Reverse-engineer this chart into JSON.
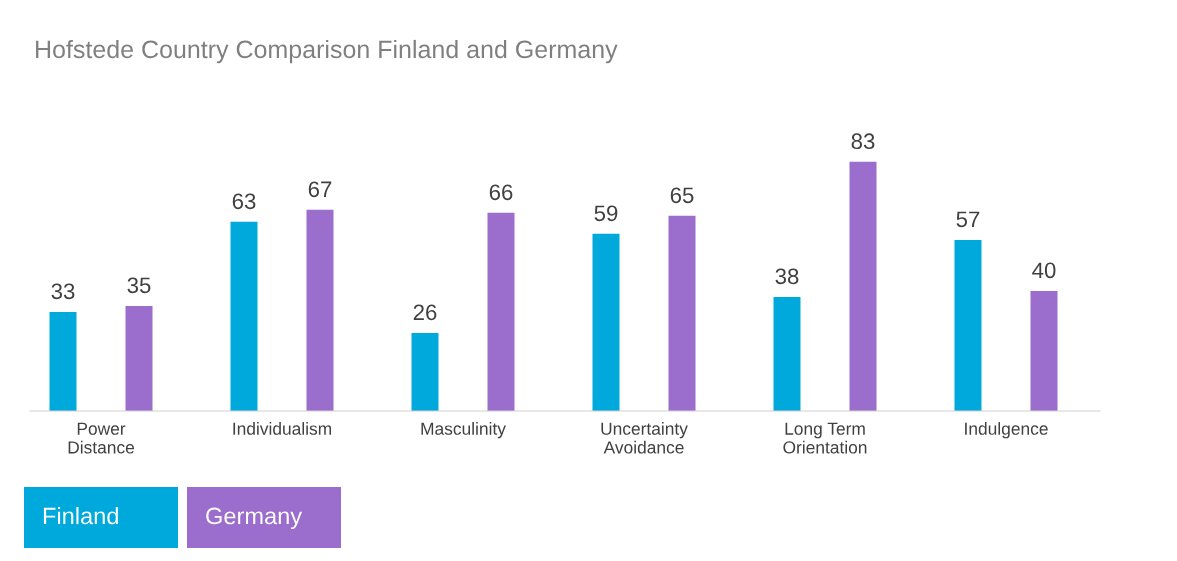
{
  "chart_data": {
    "type": "bar",
    "title": "Hofstede Country Comparison Finland and Germany",
    "categories": [
      "Power\nDistance",
      "Individualism",
      "Masculinity",
      "Uncertainty\nAvoidance",
      "Long Term\nOrientation",
      "Indulgence"
    ],
    "series": [
      {
        "name": "Finland",
        "color": "#00a9db",
        "values": [
          33,
          63,
          26,
          59,
          38,
          57
        ]
      },
      {
        "name": "Germany",
        "color": "#9b6dcc",
        "values": [
          35,
          67,
          66,
          65,
          83,
          40
        ]
      }
    ],
    "data_labels": true,
    "legend": "bottom left",
    "grid": false
  }
}
